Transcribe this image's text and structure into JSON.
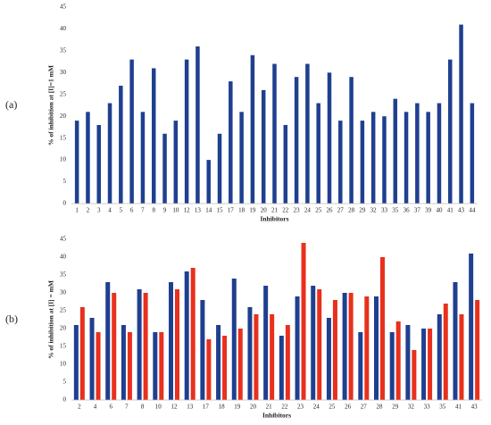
{
  "chart_data": [
    {
      "type": "bar",
      "panel_label": "(a)",
      "ylabel": "% of inhibition at [I]=1 mM",
      "xlabel": "Inhibitors",
      "categories": [
        "1",
        "2",
        "3",
        "4",
        "5",
        "6",
        "7",
        "8",
        "9",
        "10",
        "12",
        "13",
        "14",
        "15",
        "17",
        "18",
        "19",
        "20",
        "21",
        "22",
        "23",
        "24",
        "25",
        "26",
        "27",
        "28",
        "29",
        "32",
        "33",
        "35",
        "36",
        "37",
        "39",
        "40",
        "41",
        "43",
        "44"
      ],
      "series": [
        {
          "color": "#1f3f8f",
          "values": [
            19,
            21,
            18,
            23,
            27,
            33,
            21,
            31,
            16,
            19,
            33,
            36,
            10,
            16,
            28,
            21,
            34,
            26,
            32,
            18,
            29,
            32,
            23,
            30,
            19,
            29,
            19,
            21,
            20,
            24,
            21,
            23,
            21,
            23,
            33,
            41,
            23
          ]
        }
      ],
      "ylim": [
        0,
        45
      ],
      "yticks": [
        0,
        5,
        10,
        15,
        20,
        25,
        30,
        35,
        40,
        45
      ],
      "grid": false
    },
    {
      "type": "bar",
      "panel_label": "(b)",
      "ylabel": "% of inhibition at [I] = mM",
      "xlabel": "Inhibitors",
      "categories": [
        "2",
        "4",
        "6",
        "7",
        "8",
        "10",
        "12",
        "13",
        "17",
        "18",
        "19",
        "20",
        "21",
        "22",
        "23",
        "24",
        "25",
        "26",
        "27",
        "28",
        "29",
        "32",
        "33",
        "35",
        "41",
        "43"
      ],
      "series": [
        {
          "color": "#1f3f8f",
          "values": [
            21,
            23,
            33,
            21,
            31,
            19,
            33,
            36,
            28,
            21,
            34,
            26,
            32,
            18,
            29,
            32,
            23,
            30,
            19,
            29,
            19,
            21,
            20,
            24,
            33,
            41
          ]
        },
        {
          "color": "#e8301c",
          "values": [
            26,
            19,
            30,
            19,
            30,
            19,
            31,
            37,
            17,
            18,
            20,
            24,
            24,
            21,
            44,
            31,
            28,
            30,
            29,
            40,
            22,
            14,
            20,
            27,
            24,
            28
          ]
        }
      ],
      "ylim": [
        0,
        45
      ],
      "yticks": [
        0,
        5,
        10,
        15,
        20,
        25,
        30,
        35,
        40,
        45
      ],
      "grid": false
    }
  ]
}
